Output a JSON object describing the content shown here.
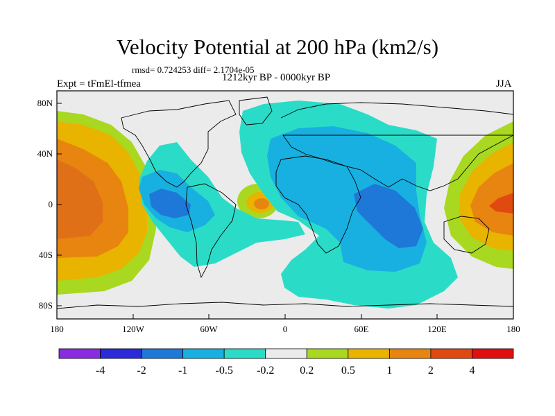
{
  "title": "Velocity Potential at 200 hPa (km2/s)",
  "stats": "rmsd= 0.724253  diff= 2.1704e-05",
  "left_label": "Expt = tFmEl-tfmea",
  "center_label": "1212kyr BP - 0000kyr BP",
  "right_label": "JJA",
  "lat_ticks": [
    "80N",
    "40N",
    "0",
    "40S",
    "80S"
  ],
  "lon_ticks": [
    "180",
    "120W",
    "60W",
    "0",
    "60E",
    "120E",
    "180"
  ],
  "colorbar": {
    "colors": [
      "#8a2be2",
      "#2a2ad8",
      "#1e78d8",
      "#18b0e0",
      "#2adcc8",
      "#ebebeb",
      "#a8d820",
      "#e8b400",
      "#e88410",
      "#e04a10",
      "#e01010"
    ],
    "labels": [
      "-4",
      "-2",
      "-1",
      "-0.5",
      "-0.2",
      "0.2",
      "0.5",
      "1",
      "2",
      "4"
    ]
  },
  "colors": {
    "background": "#ebebeb",
    "coast": "#000000"
  }
}
